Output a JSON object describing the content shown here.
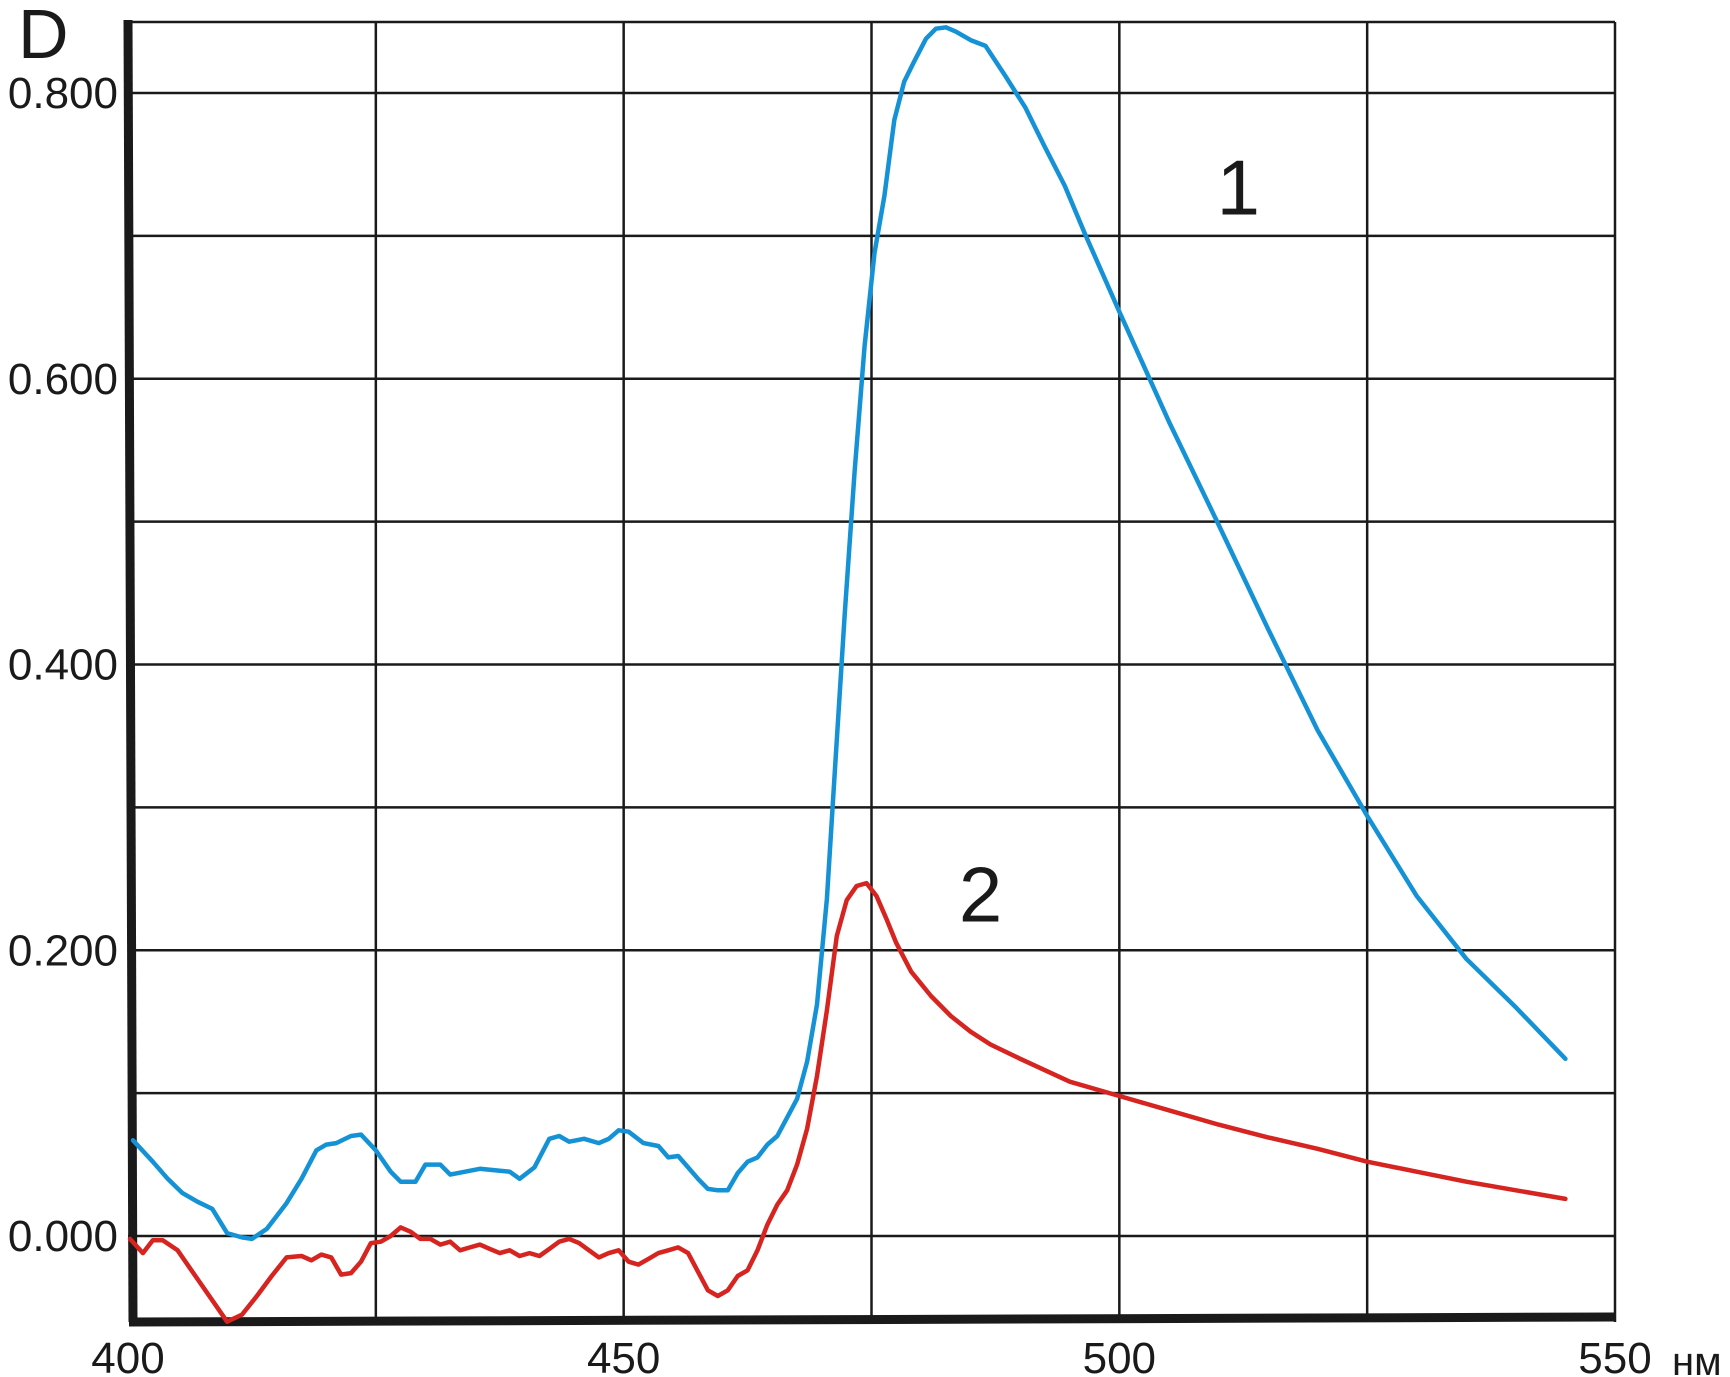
{
  "chart_data": {
    "type": "line",
    "ylabel": "D",
    "xunit": "нм",
    "xlim": [
      400,
      550
    ],
    "ylim": [
      -0.06,
      0.85
    ],
    "grid": true,
    "x_ticks": [
      400,
      450,
      500,
      550
    ],
    "x_tick_labels": [
      "400",
      "450",
      "500",
      "550"
    ],
    "y_ticks": [
      0,
      0.2,
      0.4,
      0.6,
      0.8
    ],
    "y_tick_labels": [
      "0.000",
      "0.200",
      "0.400",
      "0.600",
      "0.800"
    ],
    "series": [
      {
        "name": "1",
        "color": "#1592d6",
        "points": [
          [
            400.5,
            0.067
          ],
          [
            402.5,
            0.052
          ],
          [
            404,
            0.04
          ],
          [
            405.5,
            0.03
          ],
          [
            407,
            0.024
          ],
          [
            408.5,
            0.019
          ],
          [
            410,
            0.002
          ],
          [
            411.5,
            -0.001
          ],
          [
            412.5,
            -0.002
          ],
          [
            414,
            0.005
          ],
          [
            416,
            0.023
          ],
          [
            417.5,
            0.04
          ],
          [
            419,
            0.06
          ],
          [
            420,
            0.064
          ],
          [
            421,
            0.065
          ],
          [
            422.5,
            0.07
          ],
          [
            423.5,
            0.071
          ],
          [
            425,
            0.06
          ],
          [
            426.5,
            0.045
          ],
          [
            427.5,
            0.038
          ],
          [
            429,
            0.038
          ],
          [
            430,
            0.05
          ],
          [
            431.5,
            0.05
          ],
          [
            432.5,
            0.043
          ],
          [
            434,
            0.045
          ],
          [
            435.5,
            0.047
          ],
          [
            437,
            0.046
          ],
          [
            438.5,
            0.045
          ],
          [
            439.5,
            0.04
          ],
          [
            441,
            0.048
          ],
          [
            442.5,
            0.068
          ],
          [
            443.5,
            0.07
          ],
          [
            444.5,
            0.066
          ],
          [
            446,
            0.068
          ],
          [
            447.5,
            0.065
          ],
          [
            448.5,
            0.068
          ],
          [
            449.5,
            0.074
          ],
          [
            450.5,
            0.073
          ],
          [
            452,
            0.065
          ],
          [
            453.5,
            0.063
          ],
          [
            454.5,
            0.055
          ],
          [
            455.5,
            0.056
          ],
          [
            456.5,
            0.048
          ],
          [
            457.5,
            0.04
          ],
          [
            458.5,
            0.033
          ],
          [
            459.5,
            0.032
          ],
          [
            460.5,
            0.032
          ],
          [
            461.5,
            0.044
          ],
          [
            462.5,
            0.052
          ],
          [
            463.5,
            0.055
          ],
          [
            464.5,
            0.064
          ],
          [
            465.5,
            0.07
          ],
          [
            466.5,
            0.083
          ],
          [
            467.5,
            0.096
          ],
          [
            468.5,
            0.122
          ],
          [
            469.5,
            0.162
          ],
          [
            470.5,
            0.236
          ],
          [
            471.3,
            0.325
          ],
          [
            472.3,
            0.435
          ],
          [
            473.3,
            0.535
          ],
          [
            474.3,
            0.623
          ],
          [
            475.3,
            0.688
          ],
          [
            476.3,
            0.728
          ],
          [
            477.3,
            0.781
          ],
          [
            478.3,
            0.808
          ],
          [
            479.3,
            0.822
          ],
          [
            480.5,
            0.838
          ],
          [
            481.5,
            0.845
          ],
          [
            482.5,
            0.846
          ],
          [
            483.5,
            0.843
          ],
          [
            485,
            0.837
          ],
          [
            486.5,
            0.833
          ],
          [
            488.5,
            0.812
          ],
          [
            490.5,
            0.79
          ],
          [
            492.5,
            0.762
          ],
          [
            494.5,
            0.735
          ],
          [
            496.5,
            0.702
          ],
          [
            500,
            0.647
          ],
          [
            505,
            0.57
          ],
          [
            510,
            0.498
          ],
          [
            515,
            0.425
          ],
          [
            520,
            0.354
          ],
          [
            525,
            0.294
          ],
          [
            530,
            0.238
          ],
          [
            535,
            0.194
          ],
          [
            540,
            0.16
          ],
          [
            545,
            0.124
          ]
        ]
      },
      {
        "name": "2",
        "color": "#d62420",
        "points": [
          [
            400.2,
            -0.002
          ],
          [
            401.5,
            -0.012
          ],
          [
            402.5,
            -0.003
          ],
          [
            403.5,
            -0.003
          ],
          [
            405,
            -0.01
          ],
          [
            407,
            -0.03
          ],
          [
            408.5,
            -0.045
          ],
          [
            410,
            -0.06
          ],
          [
            411.5,
            -0.055
          ],
          [
            413,
            -0.042
          ],
          [
            414.5,
            -0.028
          ],
          [
            416,
            -0.015
          ],
          [
            417.5,
            -0.014
          ],
          [
            418.5,
            -0.017
          ],
          [
            419.5,
            -0.013
          ],
          [
            420.5,
            -0.015
          ],
          [
            421.5,
            -0.027
          ],
          [
            422.5,
            -0.026
          ],
          [
            423.5,
            -0.018
          ],
          [
            424.5,
            -0.005
          ],
          [
            425.5,
            -0.004
          ],
          [
            426.5,
            0.0
          ],
          [
            427.5,
            0.006
          ],
          [
            428.5,
            0.003
          ],
          [
            429.5,
            -0.002
          ],
          [
            430.5,
            -0.002
          ],
          [
            431.5,
            -0.006
          ],
          [
            432.5,
            -0.004
          ],
          [
            433.5,
            -0.01
          ],
          [
            434.5,
            -0.008
          ],
          [
            435.5,
            -0.006
          ],
          [
            436.5,
            -0.009
          ],
          [
            437.5,
            -0.012
          ],
          [
            438.5,
            -0.01
          ],
          [
            439.5,
            -0.014
          ],
          [
            440.5,
            -0.012
          ],
          [
            441.5,
            -0.014
          ],
          [
            442.5,
            -0.009
          ],
          [
            443.5,
            -0.004
          ],
          [
            444.5,
            -0.002
          ],
          [
            445.5,
            -0.005
          ],
          [
            446.5,
            -0.01
          ],
          [
            447.5,
            -0.015
          ],
          [
            448.5,
            -0.012
          ],
          [
            449.5,
            -0.01
          ],
          [
            450.5,
            -0.018
          ],
          [
            451.5,
            -0.02
          ],
          [
            452.5,
            -0.016
          ],
          [
            453.5,
            -0.012
          ],
          [
            454.5,
            -0.01
          ],
          [
            455.5,
            -0.008
          ],
          [
            456.5,
            -0.012
          ],
          [
            457.5,
            -0.025
          ],
          [
            458.5,
            -0.038
          ],
          [
            459.5,
            -0.042
          ],
          [
            460.5,
            -0.038
          ],
          [
            461.5,
            -0.028
          ],
          [
            462.5,
            -0.024
          ],
          [
            463.5,
            -0.01
          ],
          [
            464.5,
            0.008
          ],
          [
            465.5,
            0.022
          ],
          [
            466.5,
            0.032
          ],
          [
            467.5,
            0.05
          ],
          [
            468.5,
            0.075
          ],
          [
            469.5,
            0.112
          ],
          [
            470.5,
            0.158
          ],
          [
            471.5,
            0.21
          ],
          [
            472.5,
            0.235
          ],
          [
            473.5,
            0.245
          ],
          [
            474.5,
            0.247
          ],
          [
            475.5,
            0.238
          ],
          [
            476.5,
            0.222
          ],
          [
            477.5,
            0.205
          ],
          [
            479,
            0.185
          ],
          [
            481,
            0.168
          ],
          [
            483,
            0.154
          ],
          [
            485,
            0.143
          ],
          [
            487,
            0.134
          ],
          [
            490,
            0.124
          ],
          [
            495,
            0.108
          ],
          [
            500,
            0.098
          ],
          [
            505,
            0.088
          ],
          [
            510,
            0.078
          ],
          [
            515,
            0.069
          ],
          [
            520,
            0.061
          ],
          [
            525,
            0.052
          ],
          [
            530,
            0.045
          ],
          [
            535,
            0.038
          ],
          [
            540,
            0.032
          ],
          [
            545,
            0.026
          ]
        ]
      }
    ],
    "annotations": [
      {
        "text": "1",
        "x": 512,
        "y": 0.715
      },
      {
        "text": "2",
        "x": 486,
        "y": 0.22
      }
    ]
  }
}
